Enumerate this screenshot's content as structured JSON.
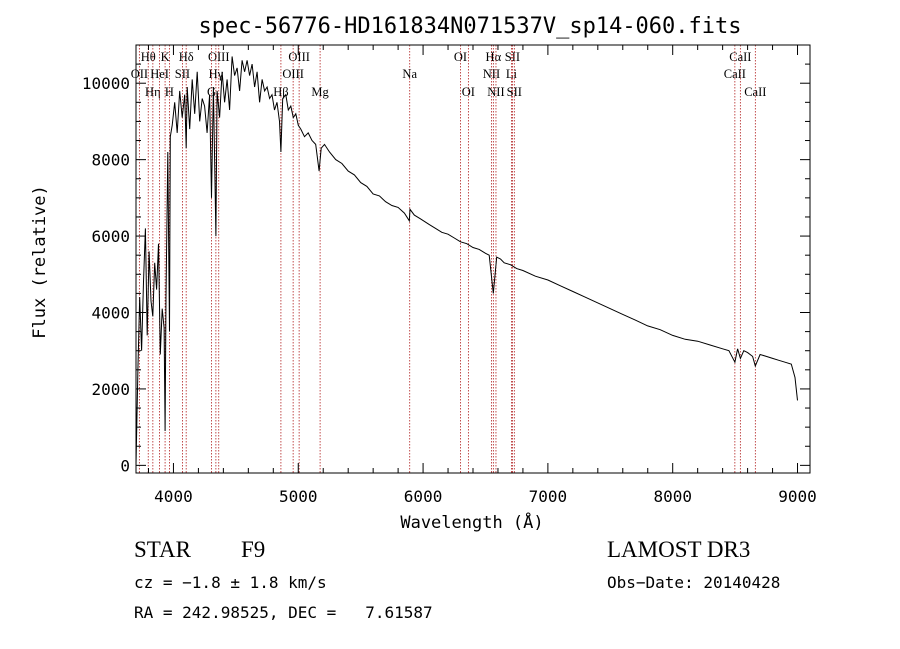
{
  "chart_data": {
    "type": "line",
    "title": "spec-56776-HD161834N071537V_sp14-060.fits",
    "xlabel": "Wavelength (Å)",
    "ylabel": "Flux (relative)",
    "xlim": [
      3700,
      9100
    ],
    "ylim": [
      -200,
      11000
    ],
    "xticks": [
      4000,
      5000,
      6000,
      7000,
      8000,
      9000
    ],
    "yticks": [
      0,
      2000,
      4000,
      6000,
      8000,
      10000
    ],
    "grid": false,
    "series": [
      {
        "name": "flux",
        "x": [
          3700,
          3715,
          3730,
          3745,
          3760,
          3775,
          3790,
          3805,
          3820,
          3835,
          3850,
          3865,
          3880,
          3895,
          3910,
          3925,
          3933,
          3940,
          3955,
          3968,
          3975,
          3990,
          4010,
          4030,
          4050,
          4070,
          4090,
          4102,
          4110,
          4130,
          4150,
          4170,
          4190,
          4210,
          4230,
          4250,
          4270,
          4290,
          4305,
          4320,
          4340,
          4350,
          4370,
          4390,
          4410,
          4430,
          4450,
          4470,
          4490,
          4510,
          4530,
          4550,
          4570,
          4590,
          4610,
          4630,
          4650,
          4670,
          4690,
          4710,
          4730,
          4750,
          4770,
          4790,
          4810,
          4830,
          4850,
          4861,
          4875,
          4900,
          4920,
          4940,
          4960,
          4980,
          5000,
          5020,
          5050,
          5080,
          5110,
          5140,
          5167,
          5184,
          5210,
          5250,
          5300,
          5350,
          5400,
          5450,
          5500,
          5550,
          5600,
          5650,
          5700,
          5750,
          5800,
          5850,
          5890,
          5895,
          5930,
          5980,
          6050,
          6100,
          6150,
          6200,
          6250,
          6300,
          6350,
          6400,
          6450,
          6500,
          6530,
          6563,
          6590,
          6620,
          6650,
          6700,
          6750,
          6800,
          6900,
          7000,
          7100,
          7200,
          7300,
          7400,
          7500,
          7600,
          7700,
          7800,
          7900,
          8000,
          8100,
          8200,
          8300,
          8400,
          8450,
          8498,
          8520,
          8542,
          8570,
          8600,
          8640,
          8662,
          8700,
          8750,
          8800,
          8850,
          8900,
          8950,
          8980,
          9000
        ],
        "values": [
          0,
          2500,
          4400,
          3000,
          4800,
          6200,
          3400,
          5600,
          4300,
          3900,
          5300,
          4600,
          5800,
          2900,
          4100,
          3600,
          900,
          4400,
          8200,
          3500,
          8600,
          8900,
          9500,
          8700,
          9800,
          9100,
          9700,
          8300,
          9900,
          8800,
          10100,
          9200,
          10300,
          9000,
          9600,
          9400,
          8700,
          9700,
          7000,
          9900,
          6000,
          9800,
          9100,
          10300,
          9500,
          10100,
          9300,
          10700,
          10200,
          10400,
          9800,
          10600,
          10300,
          10600,
          10200,
          10500,
          9900,
          10300,
          9500,
          10100,
          9800,
          9900,
          9600,
          9700,
          9300,
          9500,
          9000,
          8200,
          9600,
          9700,
          9300,
          9400,
          9100,
          9200,
          8900,
          8800,
          8600,
          8700,
          8500,
          8400,
          7700,
          8300,
          8400,
          8200,
          8000,
          7900,
          7700,
          7600,
          7400,
          7300,
          7100,
          7050,
          6900,
          6800,
          6750,
          6600,
          6400,
          6700,
          6550,
          6450,
          6300,
          6200,
          6100,
          6050,
          5950,
          5850,
          5800,
          5700,
          5650,
          5550,
          5500,
          4500,
          5450,
          5400,
          5300,
          5250,
          5150,
          5100,
          4950,
          4850,
          4700,
          4550,
          4400,
          4250,
          4100,
          3950,
          3800,
          3650,
          3550,
          3400,
          3300,
          3250,
          3150,
          3050,
          3000,
          2700,
          3050,
          2800,
          3000,
          2950,
          2850,
          2600,
          2900,
          2850,
          2800,
          2750,
          2700,
          2650,
          2300,
          1700
        ]
      }
    ],
    "line_markers": [
      {
        "label": "Hθ",
        "x": 3798,
        "row": 0
      },
      {
        "label": "OII",
        "x": 3727,
        "row": 1
      },
      {
        "label": "Hη",
        "x": 3835,
        "row": 2
      },
      {
        "label": "K",
        "x": 3933,
        "row": 0
      },
      {
        "label": "HeI",
        "x": 3889,
        "row": 1
      },
      {
        "label": "Hδ",
        "x": 4102,
        "row": 0
      },
      {
        "label": "SII",
        "x": 4072,
        "row": 1
      },
      {
        "label": "H",
        "x": 3968,
        "row": 2
      },
      {
        "label": "OIII",
        "x": 4363,
        "row": 0
      },
      {
        "label": "Hγ",
        "x": 4340,
        "row": 1
      },
      {
        "label": "G",
        "x": 4305,
        "row": 2
      },
      {
        "label": "Hβ",
        "x": 4861,
        "row": 2
      },
      {
        "label": "OIII",
        "x": 5007,
        "row": 0
      },
      {
        "label": "OIII",
        "x": 4959,
        "row": 1
      },
      {
        "label": "Mg",
        "x": 5175,
        "row": 2
      },
      {
        "label": "Na",
        "x": 5893,
        "row": 1
      },
      {
        "label": "OI",
        "x": 6300,
        "row": 0
      },
      {
        "label": "OI",
        "x": 6363,
        "row": 2
      },
      {
        "label": "Hα",
        "x": 6563,
        "row": 0
      },
      {
        "label": "SII",
        "x": 6716,
        "row": 0
      },
      {
        "label": "NII",
        "x": 6548,
        "row": 1
      },
      {
        "label": "Li",
        "x": 6708,
        "row": 1
      },
      {
        "label": "NII",
        "x": 6584,
        "row": 2
      },
      {
        "label": "SII",
        "x": 6731,
        "row": 2
      },
      {
        "label": "CaII",
        "x": 8542,
        "row": 0
      },
      {
        "label": "CaII",
        "x": 8498,
        "row": 1
      },
      {
        "label": "CaII",
        "x": 8662,
        "row": 2
      }
    ],
    "marker_color": "#b22222"
  },
  "info": {
    "obj_class": "STAR",
    "subclass": "F9",
    "survey": "LAMOST DR3",
    "cz": "cz = −1.8 ± 1.8 km/s",
    "obs_date": "Obs−Date: 20140428",
    "coords": "RA = 242.98525, DEC =   7.61587"
  }
}
